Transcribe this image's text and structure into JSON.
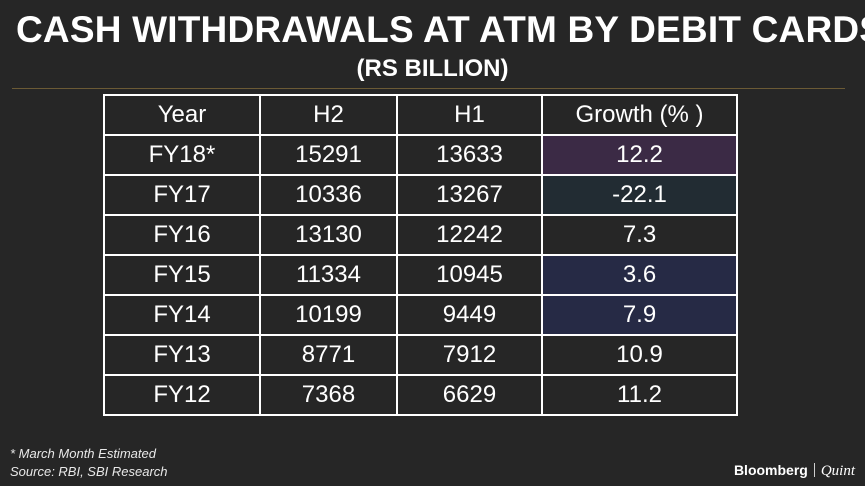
{
  "title": "CASH WITHDRAWALS AT ATM BY DEBIT CARDS",
  "subtitle": "(RS BILLION)",
  "chart_data": {
    "type": "table",
    "columns": [
      "Year",
      "H2",
      "H1",
      "Growth (% )"
    ],
    "rows": [
      [
        "FY18*",
        "15291",
        "13633",
        "12.2"
      ],
      [
        "FY17",
        "10336",
        "13267",
        "-22.1"
      ],
      [
        "FY16",
        "13130",
        "12242",
        "7.3"
      ],
      [
        "FY15",
        "11334",
        "10945",
        "3.6"
      ],
      [
        "FY14",
        "10199",
        "9449",
        "7.9"
      ],
      [
        "FY13",
        "8771",
        "7912",
        "10.9"
      ],
      [
        "FY12",
        "7368",
        "6629",
        "11.2"
      ]
    ],
    "growth_highlight_colors": [
      "#3b2a45",
      "#222c33",
      "",
      "#262a45",
      "#262a45",
      "",
      ""
    ]
  },
  "footnotes": {
    "note": "* March Month Estimated",
    "source": "Source: RBI, SBI Research"
  },
  "brand": {
    "left": "Bloomberg",
    "right": "Quint"
  }
}
